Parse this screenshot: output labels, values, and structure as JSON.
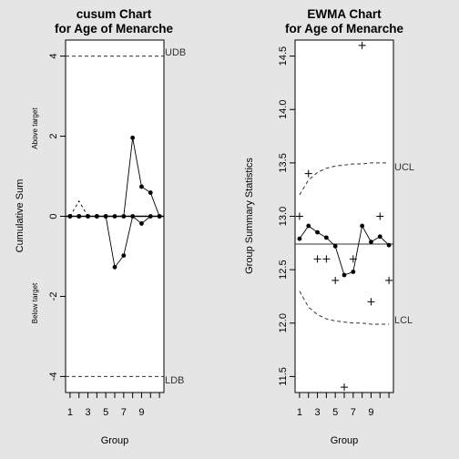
{
  "chart_data": [
    {
      "type": "line",
      "title": [
        "cusum Chart",
        "for Age of Menarche"
      ],
      "xlabel": "Group",
      "ylabel": "Cumulative Sum",
      "ylabel_upper": "Above target",
      "ylabel_lower": "Below target",
      "ylim": [
        -4.4,
        4.4
      ],
      "xlim": [
        0.5,
        11.5
      ],
      "yticks": [
        -4,
        -2,
        0,
        2,
        4
      ],
      "xticks": [
        1,
        3,
        5,
        7,
        9
      ],
      "limits": {
        "upper": 4,
        "lower": -4,
        "upper_label": "UDB",
        "lower_label": "LDB"
      },
      "x": [
        1,
        2,
        3,
        4,
        5,
        6,
        7,
        8,
        9,
        10,
        11
      ],
      "series": [
        {
          "values": [
            0,
            0,
            0,
            0,
            0,
            0,
            0,
            1.96,
            0.74,
            0.59,
            0
          ],
          "style": "solid-dots"
        },
        {
          "values": [
            0,
            0,
            0,
            0,
            0,
            -1.27,
            -0.98,
            0,
            -0.18,
            0,
            0
          ],
          "style": "solid-dots"
        },
        {
          "values": [
            0,
            0.38,
            0,
            0,
            0,
            0,
            0,
            0,
            0,
            0,
            0
          ],
          "style": "dashed"
        }
      ]
    },
    {
      "type": "line",
      "title": [
        "EWMA Chart",
        "for Age of Menarche"
      ],
      "xlabel": "Group",
      "ylabel": "Group Summary Statistics",
      "ylim": [
        11.35,
        14.65
      ],
      "xlim": [
        0.5,
        11.5
      ],
      "yticks": [
        11.5,
        12.0,
        12.5,
        13.0,
        13.5,
        14.0,
        14.5
      ],
      "xticks": [
        1,
        3,
        5,
        7,
        9
      ],
      "center": 12.74,
      "x": [
        1,
        2,
        3,
        4,
        5,
        6,
        7,
        8,
        9,
        10,
        11
      ],
      "observations": [
        13.0,
        13.4,
        12.6,
        12.6,
        12.4,
        11.4,
        12.6,
        14.6,
        12.2,
        13.0,
        12.4
      ],
      "ewma": [
        12.79,
        12.91,
        12.85,
        12.8,
        12.72,
        12.45,
        12.48,
        12.91,
        12.76,
        12.81,
        12.73
      ],
      "ucl": [
        13.2,
        13.34,
        13.41,
        13.45,
        13.47,
        13.48,
        13.49,
        13.49,
        13.5,
        13.5,
        13.5
      ],
      "lcl": [
        12.3,
        12.15,
        12.08,
        12.04,
        12.02,
        12.01,
        12.0,
        12.0,
        11.99,
        11.99,
        11.99
      ],
      "ucl_label": "UCL",
      "lcl_label": "LCL"
    }
  ]
}
